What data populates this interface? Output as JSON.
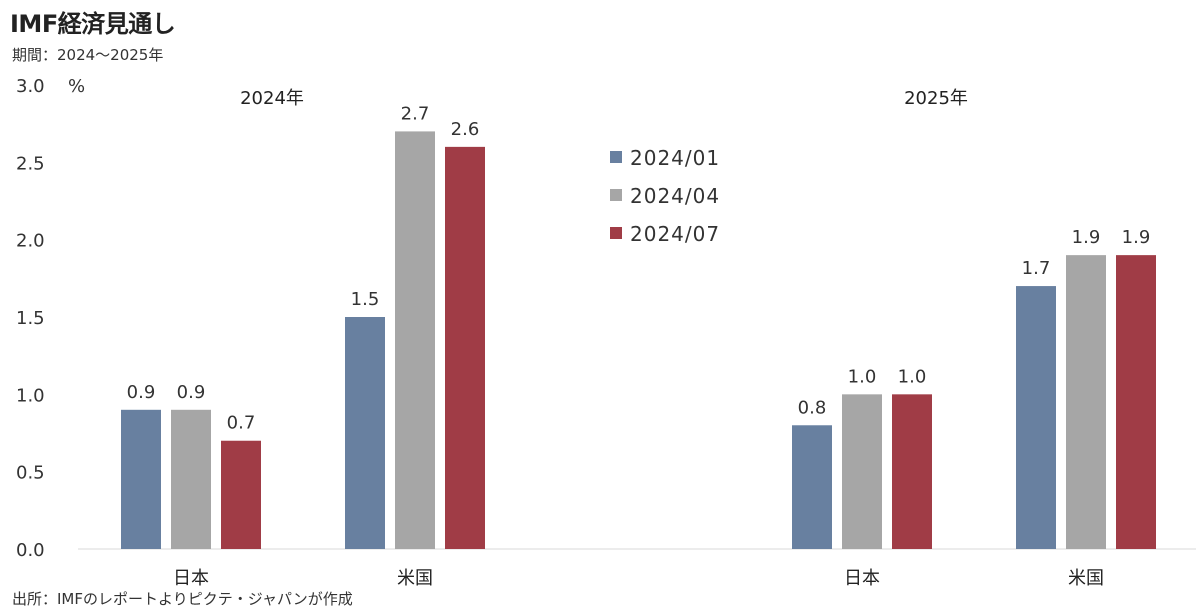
{
  "title": "IMF経済見通し",
  "subtitle": "期間：2024～2025年",
  "source": "出所：IMFのレポートよりピクテ・ジャパンが作成",
  "chart_data": {
    "type": "bar",
    "y_unit": "%",
    "ylim": [
      0,
      3.0
    ],
    "y_ticks": [
      "0.0",
      "0.5",
      "1.0",
      "1.5",
      "2.0",
      "2.5",
      "3.0"
    ],
    "grid": false,
    "legend_position": "center",
    "groups": [
      {
        "label": "2024年",
        "categories": [
          "日本",
          "米国"
        ]
      },
      {
        "label": "2025年",
        "categories": [
          "日本",
          "米国"
        ]
      }
    ],
    "series": [
      {
        "name": "2024/01",
        "color": "#6880A0",
        "values": [
          [
            0.9,
            1.5
          ],
          [
            0.8,
            1.7
          ]
        ]
      },
      {
        "name": "2024/04",
        "color": "#A6A6A6",
        "values": [
          [
            0.9,
            2.7
          ],
          [
            1.0,
            1.9
          ]
        ]
      },
      {
        "name": "2024/07",
        "color": "#A03C46",
        "values": [
          [
            0.7,
            2.6
          ],
          [
            1.0,
            1.9
          ]
        ]
      }
    ]
  }
}
